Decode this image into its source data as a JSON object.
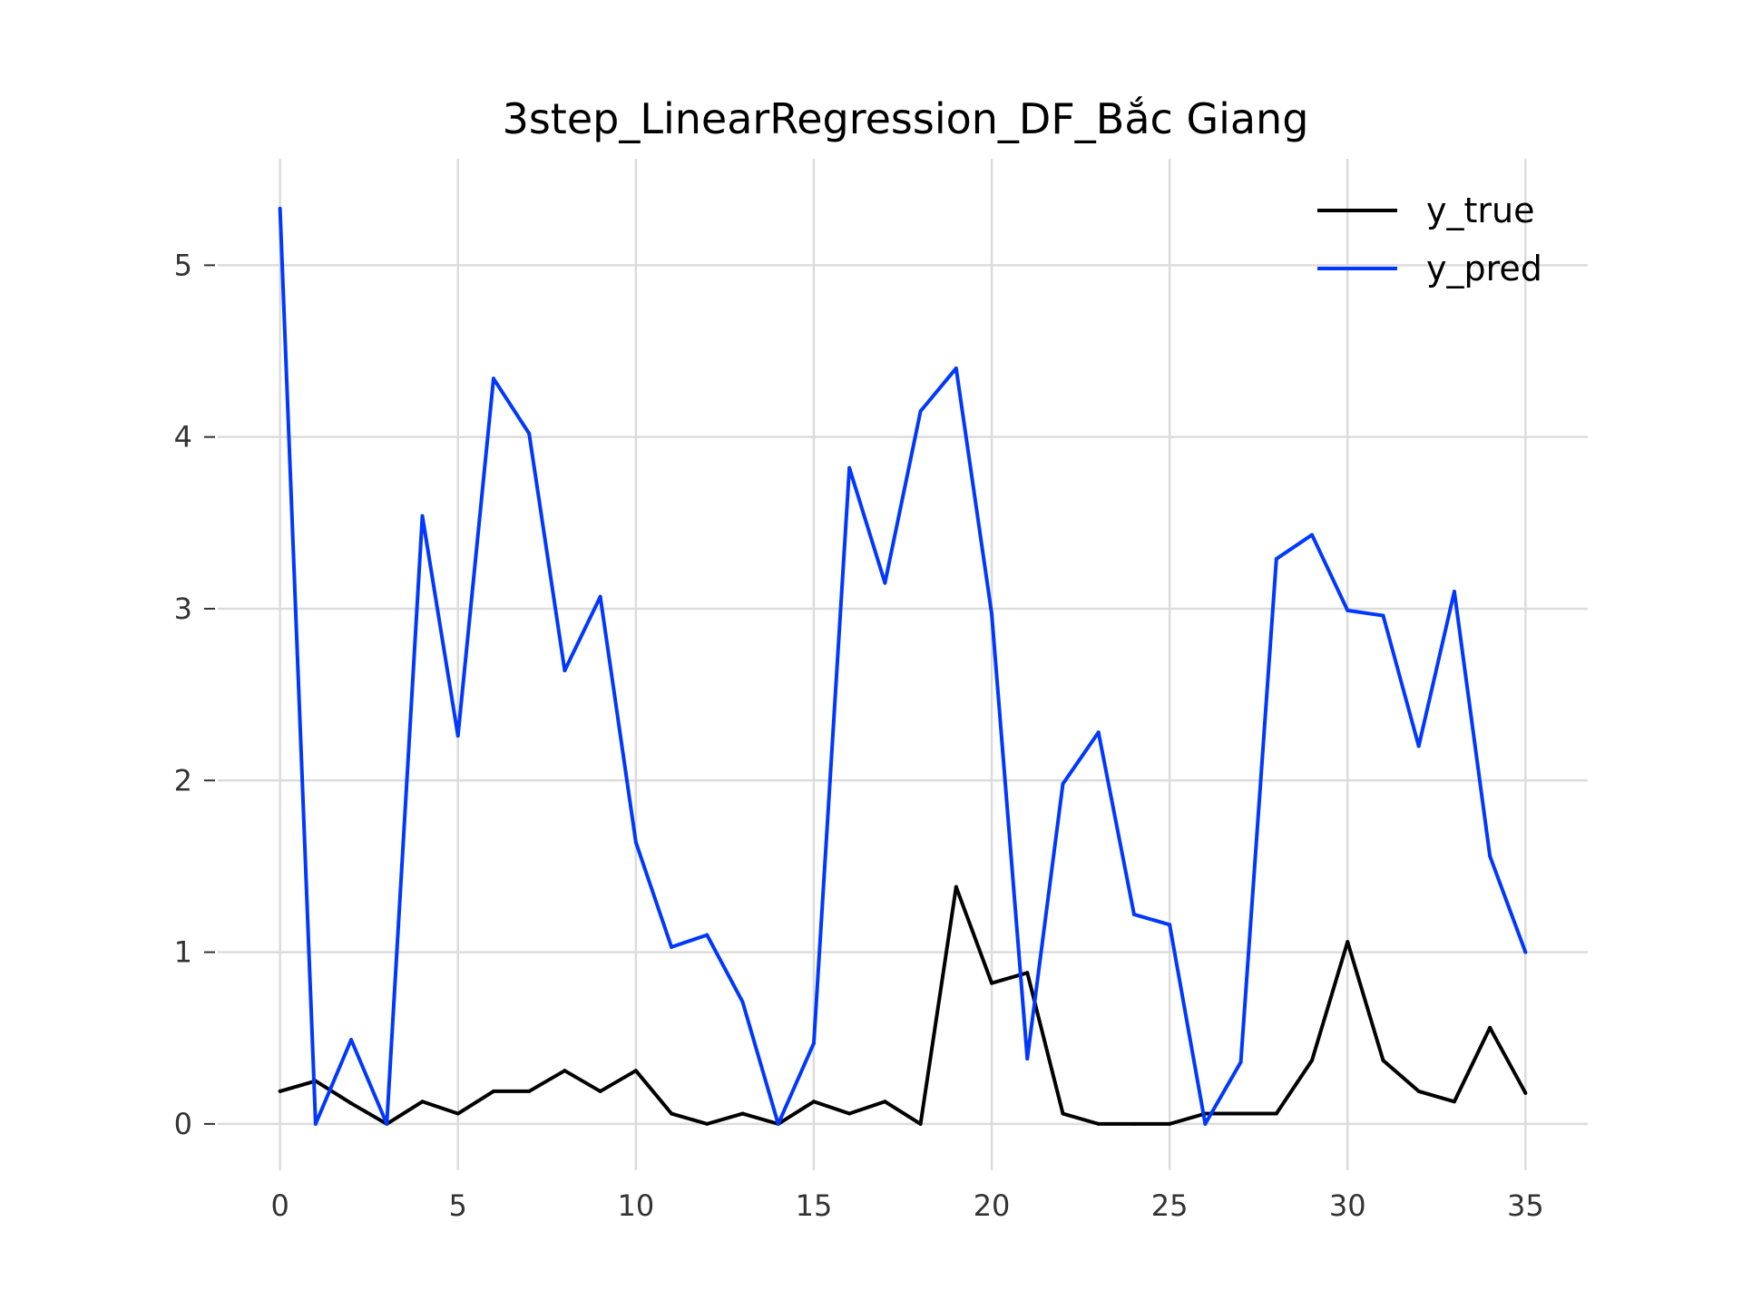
{
  "chart_data": {
    "type": "line",
    "title": "3step_LinearRegression_DF_Bắc Giang",
    "xlabel": "",
    "ylabel": "",
    "xlim": [
      -1.75,
      36.75
    ],
    "ylim": [
      -0.27,
      5.62
    ],
    "grid": true,
    "legend_position": "top-right",
    "x_ticks": [
      0,
      5,
      10,
      15,
      20,
      25,
      30,
      35
    ],
    "y_ticks": [
      0,
      1,
      2,
      3,
      4,
      5
    ],
    "x": [
      0,
      1,
      2,
      3,
      4,
      5,
      6,
      7,
      8,
      9,
      10,
      11,
      12,
      13,
      14,
      15,
      16,
      17,
      18,
      19,
      20,
      21,
      22,
      23,
      24,
      25,
      26,
      27,
      28,
      29,
      30,
      31,
      32,
      33,
      34,
      35
    ],
    "series": [
      {
        "name": "y_true",
        "color": "#000000",
        "values": [
          0.19,
          0.25,
          0.12,
          0.0,
          0.13,
          0.06,
          0.19,
          0.19,
          0.31,
          0.19,
          0.31,
          0.06,
          0.0,
          0.06,
          0.0,
          0.13,
          0.06,
          0.13,
          0.0,
          1.38,
          0.82,
          0.88,
          0.06,
          0.0,
          0.0,
          0.0,
          0.06,
          0.06,
          0.06,
          0.37,
          1.06,
          0.37,
          0.19,
          0.13,
          0.56,
          0.18
        ]
      },
      {
        "name": "y_pred",
        "color": "#0038ff",
        "values": [
          5.33,
          0.0,
          0.49,
          0.0,
          3.54,
          2.26,
          4.34,
          4.02,
          2.64,
          3.07,
          1.64,
          1.03,
          1.1,
          0.71,
          0.0,
          0.47,
          3.82,
          3.15,
          4.15,
          4.4,
          2.97,
          0.38,
          1.98,
          2.28,
          1.22,
          1.16,
          0.0,
          0.36,
          3.29,
          3.43,
          2.99,
          2.96,
          2.2,
          3.1,
          1.56,
          1.0
        ]
      }
    ]
  }
}
